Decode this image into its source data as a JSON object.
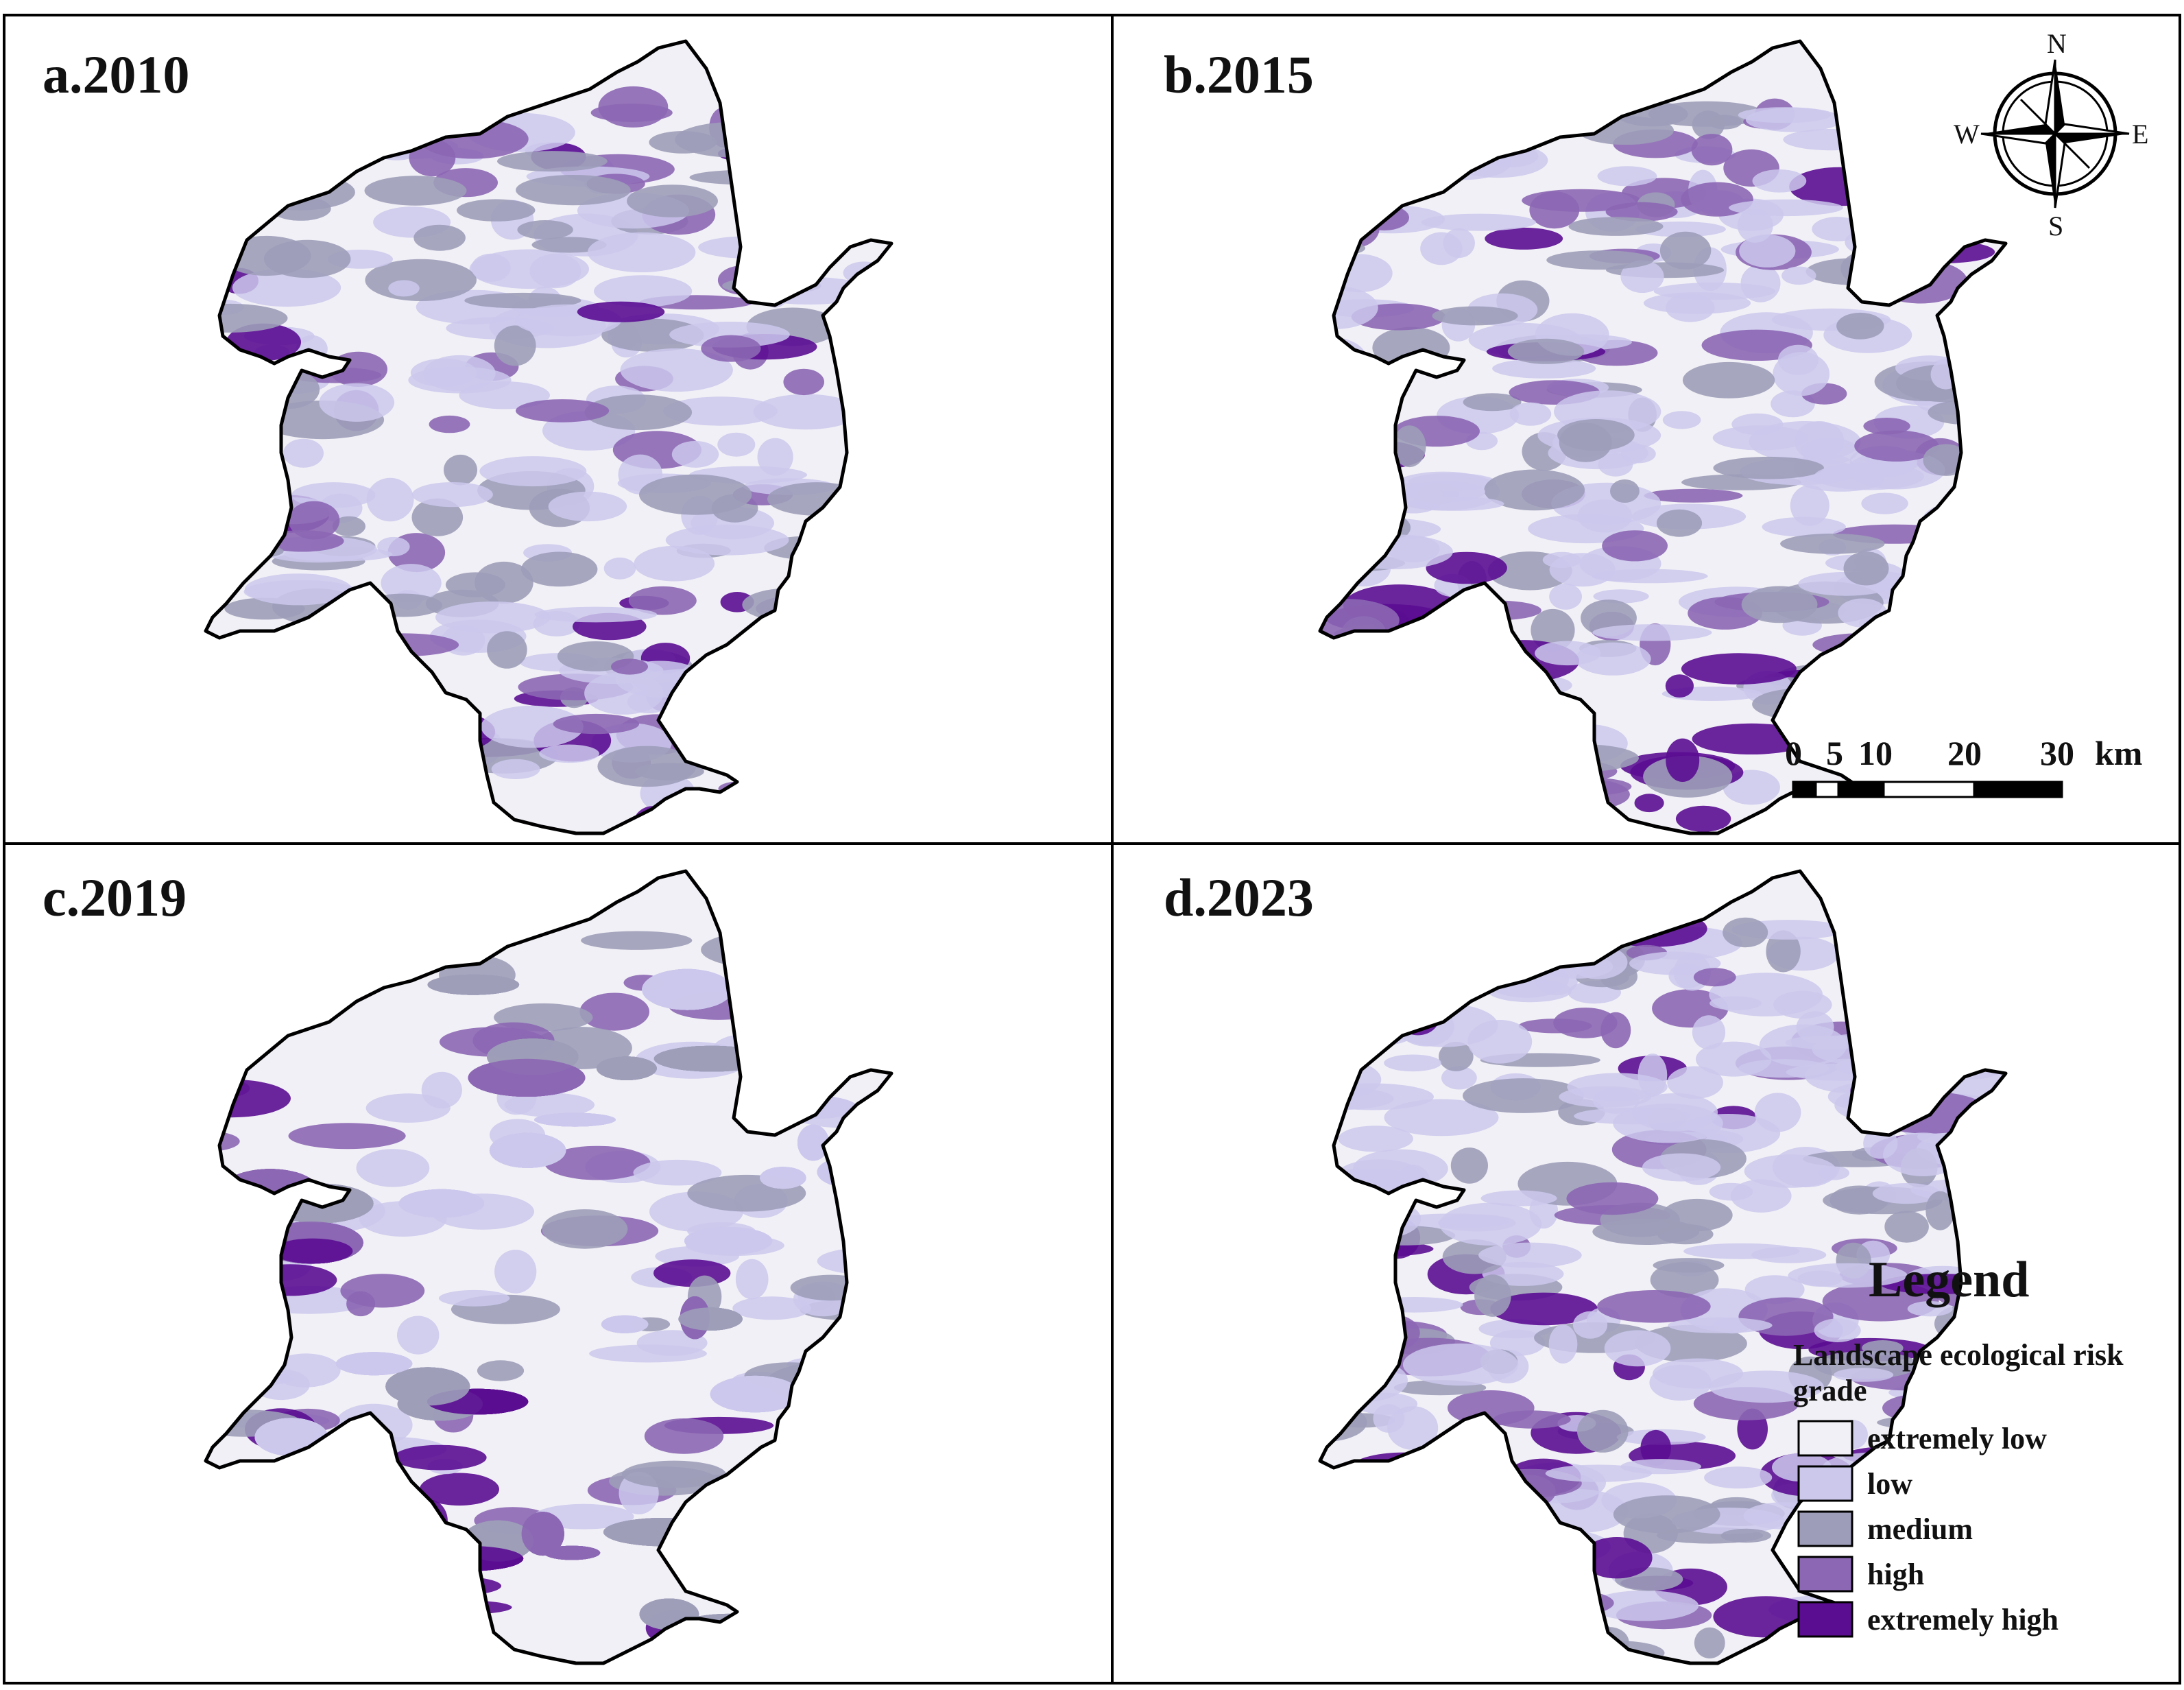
{
  "panels": [
    {
      "label": "a.2010"
    },
    {
      "label": "b.2015"
    },
    {
      "label": "c.2019"
    },
    {
      "label": "d.2023"
    }
  ],
  "compass": {
    "n": "N",
    "s": "S",
    "e": "E",
    "w": "W"
  },
  "scale_bar": {
    "ticks": [
      "0",
      "5",
      "10",
      "20",
      "30"
    ],
    "unit": "km"
  },
  "legend": {
    "title": "Legend",
    "subtitle_line1": "Landscape ecological risk",
    "subtitle_line2": "grade",
    "classes": [
      {
        "label": "extremely low",
        "color": "#f1f0f6"
      },
      {
        "label": "low",
        "color": "#cbc8ec"
      },
      {
        "label": "medium",
        "color": "#9d9db9"
      },
      {
        "label": "high",
        "color": "#8c67b4"
      },
      {
        "label": "extremely high",
        "color": "#5b0d92"
      }
    ]
  },
  "map_style": {
    "boundary_color": "#000000",
    "base_fill": "#f1f0f6"
  }
}
